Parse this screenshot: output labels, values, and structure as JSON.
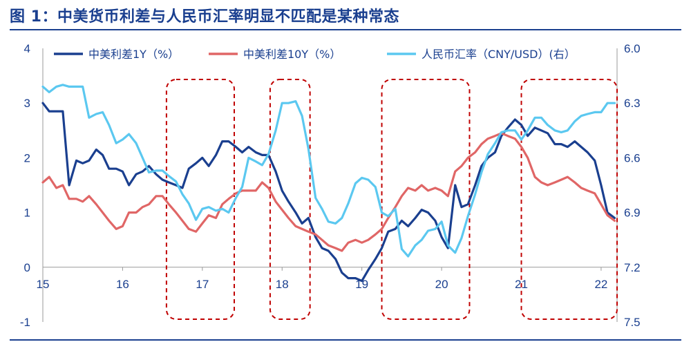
{
  "title": "图 1：中美货币利差与人民币汇率明显不匹配是某种常态",
  "chart_data": {
    "type": "line",
    "title": "图 1：中美货币利差与人民币汇率明显不匹配是某种常态",
    "x_tick_labels": [
      "15",
      "16",
      "17",
      "18",
      "19",
      "20",
      "21",
      "22"
    ],
    "x_tick_positions": [
      2015.0,
      2016.0,
      2017.0,
      2018.0,
      2019.0,
      2020.0,
      2021.0,
      2022.0
    ],
    "xlim": [
      2015.0,
      2022.2
    ],
    "y_left": {
      "ylim": [
        -1,
        4
      ],
      "ticks": [
        "4",
        "3",
        "2",
        "1",
        "0",
        "-1"
      ],
      "tick_values": [
        4,
        3,
        2,
        1,
        0,
        -1
      ]
    },
    "y_right": {
      "ylim": [
        7.5,
        6.0
      ],
      "inverted": true,
      "ticks": [
        "6.0",
        "6.3",
        "6.6",
        "6.9",
        "7.2",
        "7.5"
      ],
      "tick_values": [
        6.0,
        6.3,
        6.6,
        6.9,
        7.2,
        7.5
      ]
    },
    "grid": false,
    "legend_position": "top",
    "highlight_periods": [
      {
        "x": [
          2016.55,
          2017.4
        ]
      },
      {
        "x": [
          2017.85,
          2018.35
        ]
      },
      {
        "x": [
          2019.25,
          2020.35
        ]
      },
      {
        "x": [
          2021.0,
          2022.2
        ]
      }
    ],
    "series": [
      {
        "name": "中美利差1Y（%）",
        "axis": "left",
        "color": "#1a3f8f",
        "x": [
          2015.0,
          2015.08,
          2015.17,
          2015.25,
          2015.33,
          2015.42,
          2015.5,
          2015.58,
          2015.67,
          2015.75,
          2015.83,
          2015.92,
          2016.0,
          2016.08,
          2016.17,
          2016.25,
          2016.33,
          2016.42,
          2016.5,
          2016.58,
          2016.67,
          2016.75,
          2016.83,
          2016.92,
          2017.0,
          2017.08,
          2017.17,
          2017.25,
          2017.33,
          2017.42,
          2017.5,
          2017.58,
          2017.67,
          2017.75,
          2017.83,
          2017.92,
          2018.0,
          2018.08,
          2018.17,
          2018.25,
          2018.33,
          2018.42,
          2018.5,
          2018.58,
          2018.67,
          2018.75,
          2018.83,
          2018.92,
          2019.0,
          2019.08,
          2019.17,
          2019.25,
          2019.33,
          2019.42,
          2019.5,
          2019.58,
          2019.67,
          2019.75,
          2019.83,
          2019.92,
          2020.0,
          2020.08,
          2020.17,
          2020.25,
          2020.33,
          2020.42,
          2020.5,
          2020.58,
          2020.67,
          2020.75,
          2020.83,
          2020.92,
          2021.0,
          2021.08,
          2021.17,
          2021.25,
          2021.33,
          2021.42,
          2021.5,
          2021.58,
          2021.67,
          2021.75,
          2021.83,
          2021.92,
          2022.0,
          2022.08,
          2022.17
        ],
        "values": [
          3.0,
          2.85,
          2.85,
          2.85,
          1.5,
          1.95,
          1.9,
          1.95,
          2.15,
          2.05,
          1.8,
          1.8,
          1.75,
          1.5,
          1.7,
          1.75,
          1.85,
          1.7,
          1.6,
          1.55,
          1.5,
          1.45,
          1.8,
          1.9,
          2.0,
          1.85,
          2.05,
          2.3,
          2.3,
          2.2,
          2.1,
          2.2,
          2.1,
          2.05,
          2.05,
          1.75,
          1.4,
          1.2,
          1.0,
          0.8,
          0.9,
          0.55,
          0.35,
          0.3,
          0.15,
          -0.1,
          -0.2,
          -0.2,
          -0.25,
          -0.05,
          0.15,
          0.35,
          0.65,
          0.7,
          0.85,
          0.75,
          0.9,
          1.05,
          1.0,
          0.85,
          0.55,
          0.35,
          1.5,
          1.1,
          1.15,
          1.5,
          1.85,
          2.0,
          2.1,
          2.4,
          2.55,
          2.7,
          2.6,
          2.4,
          2.55,
          2.5,
          2.45,
          2.25,
          2.25,
          2.2,
          2.3,
          2.2,
          2.1,
          1.95,
          1.5,
          1.0,
          0.9
        ]
      },
      {
        "name": "中美利差10Y（%）",
        "axis": "left",
        "color": "#e06666",
        "x": [
          2015.0,
          2015.08,
          2015.17,
          2015.25,
          2015.33,
          2015.42,
          2015.5,
          2015.58,
          2015.67,
          2015.75,
          2015.83,
          2015.92,
          2016.0,
          2016.08,
          2016.17,
          2016.25,
          2016.33,
          2016.42,
          2016.5,
          2016.58,
          2016.67,
          2016.75,
          2016.83,
          2016.92,
          2017.0,
          2017.08,
          2017.17,
          2017.25,
          2017.33,
          2017.42,
          2017.5,
          2017.58,
          2017.67,
          2017.75,
          2017.83,
          2017.92,
          2018.0,
          2018.08,
          2018.17,
          2018.25,
          2018.33,
          2018.42,
          2018.5,
          2018.58,
          2018.67,
          2018.75,
          2018.83,
          2018.92,
          2019.0,
          2019.08,
          2019.17,
          2019.25,
          2019.33,
          2019.42,
          2019.5,
          2019.58,
          2019.67,
          2019.75,
          2019.83,
          2019.92,
          2020.0,
          2020.08,
          2020.17,
          2020.25,
          2020.33,
          2020.42,
          2020.5,
          2020.58,
          2020.67,
          2020.75,
          2020.83,
          2020.92,
          2021.0,
          2021.08,
          2021.17,
          2021.25,
          2021.33,
          2021.42,
          2021.5,
          2021.58,
          2021.67,
          2021.75,
          2021.83,
          2021.92,
          2022.0,
          2022.08,
          2022.17
        ],
        "values": [
          1.55,
          1.65,
          1.45,
          1.5,
          1.25,
          1.25,
          1.2,
          1.3,
          1.15,
          1.0,
          0.85,
          0.7,
          0.75,
          1.0,
          1.0,
          1.1,
          1.15,
          1.3,
          1.3,
          1.15,
          1.0,
          0.85,
          0.7,
          0.65,
          0.8,
          0.95,
          0.9,
          1.15,
          1.25,
          1.35,
          1.4,
          1.4,
          1.4,
          1.55,
          1.45,
          1.2,
          1.05,
          0.9,
          0.75,
          0.7,
          0.65,
          0.6,
          0.5,
          0.4,
          0.35,
          0.3,
          0.45,
          0.5,
          0.45,
          0.5,
          0.6,
          0.7,
          0.9,
          1.1,
          1.3,
          1.45,
          1.4,
          1.5,
          1.4,
          1.45,
          1.4,
          1.3,
          1.75,
          1.85,
          2.0,
          2.1,
          2.25,
          2.35,
          2.4,
          2.45,
          2.4,
          2.35,
          2.2,
          2.0,
          1.65,
          1.55,
          1.5,
          1.55,
          1.6,
          1.65,
          1.55,
          1.45,
          1.4,
          1.35,
          1.15,
          0.95,
          0.85
        ]
      },
      {
        "name": "人民币汇率（CNY/USD）(右）",
        "axis": "right",
        "color": "#5bc8f0",
        "x": [
          2015.0,
          2015.08,
          2015.17,
          2015.25,
          2015.33,
          2015.42,
          2015.5,
          2015.58,
          2015.67,
          2015.75,
          2015.83,
          2015.92,
          2016.0,
          2016.08,
          2016.17,
          2016.25,
          2016.33,
          2016.42,
          2016.5,
          2016.58,
          2016.67,
          2016.75,
          2016.83,
          2016.92,
          2017.0,
          2017.08,
          2017.17,
          2017.25,
          2017.33,
          2017.42,
          2017.5,
          2017.58,
          2017.67,
          2017.75,
          2017.83,
          2017.92,
          2018.0,
          2018.08,
          2018.17,
          2018.25,
          2018.33,
          2018.42,
          2018.5,
          2018.58,
          2018.67,
          2018.75,
          2018.83,
          2018.92,
          2019.0,
          2019.08,
          2019.17,
          2019.25,
          2019.33,
          2019.42,
          2019.5,
          2019.58,
          2019.67,
          2019.75,
          2019.83,
          2019.92,
          2020.0,
          2020.08,
          2020.17,
          2020.25,
          2020.33,
          2020.42,
          2020.5,
          2020.58,
          2020.67,
          2020.75,
          2020.83,
          2020.92,
          2021.0,
          2021.08,
          2021.17,
          2021.25,
          2021.33,
          2021.42,
          2021.5,
          2021.58,
          2021.67,
          2021.75,
          2021.83,
          2021.92,
          2022.0,
          2022.08,
          2022.17
        ],
        "values": [
          6.21,
          6.24,
          6.21,
          6.2,
          6.21,
          6.21,
          6.21,
          6.38,
          6.36,
          6.35,
          6.42,
          6.52,
          6.5,
          6.47,
          6.52,
          6.6,
          6.68,
          6.67,
          6.67,
          6.7,
          6.73,
          6.8,
          6.85,
          6.94,
          6.88,
          6.87,
          6.89,
          6.88,
          6.9,
          6.82,
          6.76,
          6.6,
          6.62,
          6.64,
          6.58,
          6.45,
          6.3,
          6.3,
          6.29,
          6.37,
          6.55,
          6.82,
          6.88,
          6.95,
          6.96,
          6.93,
          6.85,
          6.74,
          6.71,
          6.72,
          6.76,
          6.9,
          6.92,
          6.88,
          7.1,
          7.14,
          7.08,
          7.05,
          7.0,
          6.99,
          6.95,
          7.08,
          7.12,
          7.04,
          6.92,
          6.8,
          6.68,
          6.58,
          6.52,
          6.46,
          6.45,
          6.45,
          6.5,
          6.45,
          6.38,
          6.38,
          6.42,
          6.45,
          6.46,
          6.45,
          6.4,
          6.37,
          6.36,
          6.35,
          6.35,
          6.3,
          6.3
        ]
      }
    ]
  }
}
